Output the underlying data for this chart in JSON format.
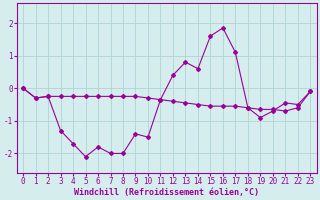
{
  "xlabel": "Windchill (Refroidissement éolien,°C)",
  "background_color": "#d5eeed",
  "grid_color": "#aed4d4",
  "line_color": "#990099",
  "x_ticks": [
    0,
    1,
    2,
    3,
    4,
    5,
    6,
    7,
    8,
    9,
    10,
    11,
    12,
    13,
    14,
    15,
    16,
    17,
    18,
    19,
    20,
    21,
    22,
    23
  ],
  "y_ticks": [
    -2,
    -1,
    0,
    1,
    2
  ],
  "xlim": [
    -0.5,
    23.5
  ],
  "ylim": [
    -2.6,
    2.6
  ],
  "series1": [
    0,
    -0.3,
    -0.25,
    -0.25,
    -0.25,
    -0.25,
    -0.25,
    -0.25,
    -0.25,
    -0.25,
    -0.3,
    -0.35,
    -0.4,
    -0.45,
    -0.5,
    -0.55,
    -0.55,
    -0.55,
    -0.6,
    -0.65,
    -0.65,
    -0.7,
    -0.6,
    -0.1
  ],
  "series2": [
    0,
    -0.3,
    -0.25,
    -1.3,
    -1.7,
    -2.1,
    -1.8,
    -2.0,
    -2.0,
    -1.4,
    -1.5,
    -0.35,
    0.4,
    0.8,
    0.6,
    1.6,
    1.85,
    1.1,
    -0.6,
    -0.9,
    -0.7,
    -0.45,
    -0.5,
    -0.1
  ],
  "tick_fontsize": 5.5,
  "xlabel_fontsize": 6.0,
  "marker_size": 2.0,
  "line_width": 0.8
}
